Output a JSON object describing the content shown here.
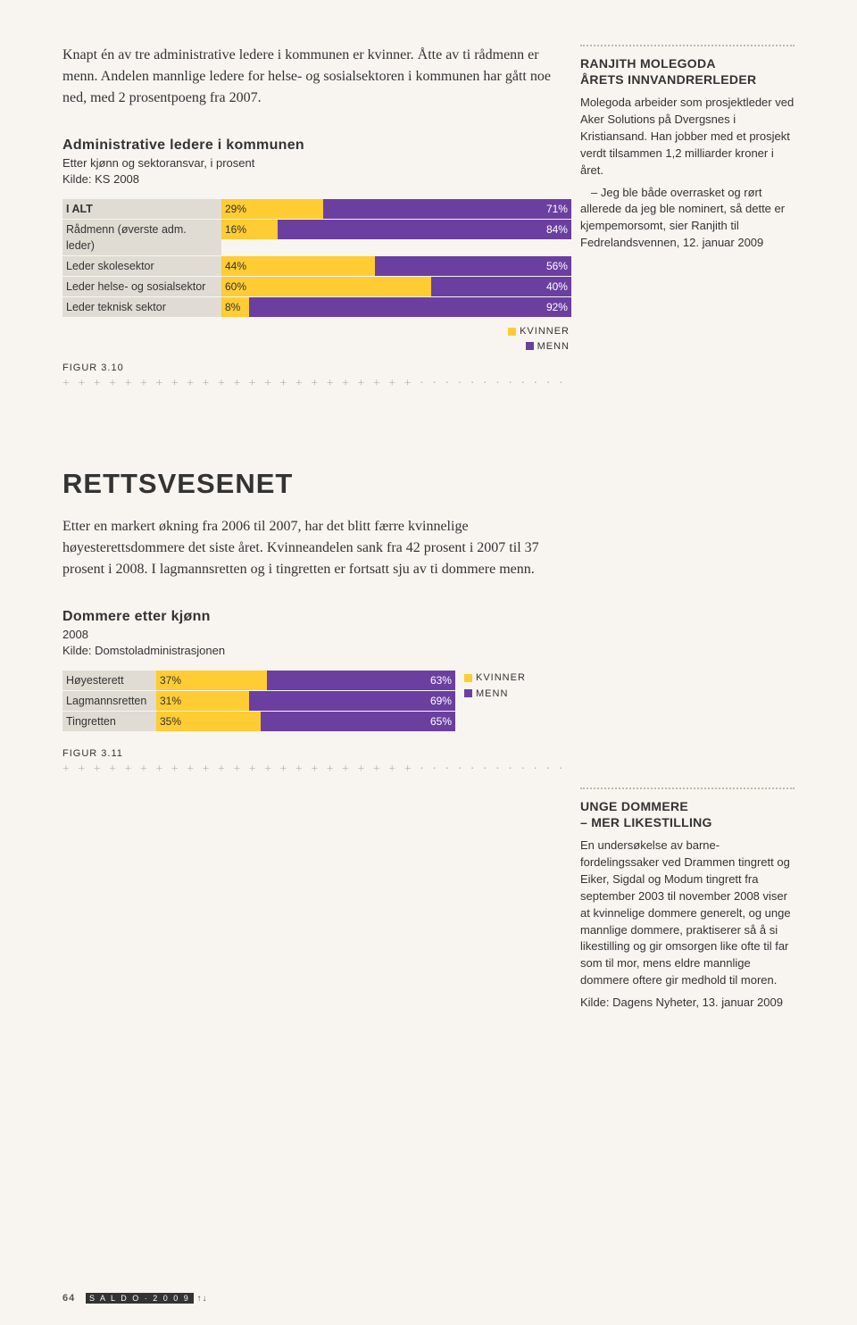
{
  "intro1": "Knapt én av tre administrative ledere i kommunen er kvinner. Åtte av ti rådmenn er menn. Andelen mannlige ledere for helse- og sosialsektoren i kommunen har gått noe ned, med 2 prosentpoeng fra 2007.",
  "chart1": {
    "title": "Administrative ledere i kommunen",
    "sub1": "Etter kjønn og sektoransvar, i prosent",
    "sub2": "Kilde: KS 2008",
    "k_color": "#ffcc33",
    "m_color": "#6b3fa0",
    "rows": [
      {
        "label": "I ALT",
        "bold": true,
        "k": 29,
        "m": 71
      },
      {
        "label": "Rådmenn (øverste adm. leder)",
        "k": 16,
        "m": 84
      },
      {
        "label": "Leder skolesektor",
        "k": 44,
        "m": 56
      },
      {
        "label": "Leder helse- og sosialsektor",
        "k": 60,
        "m": 40
      },
      {
        "label": "Leder teknisk sektor",
        "k": 8,
        "m": 92
      }
    ],
    "legend_k": "KVINNER",
    "legend_m": "MENN",
    "figref": "FIGUR 3.10"
  },
  "sidebar1": {
    "title_l1": "RANJITH MOLEGODA",
    "title_l2": "ÅRETS INNVANDRERLEDER",
    "p1": "Molegoda arbeider som prosjektleder ved Aker Solutions på Dvergsnes i Kristiansand. Han jobber med et prosjekt verdt tilsammen 1,2 milliarder kroner i året.",
    "p2": "– Jeg ble både overrasket og rørt allerede da jeg ble nominert, så dette er kjempemorsomt, sier Ranjith til Fedrelandsvennen, 12. januar 2009"
  },
  "heading2": "RETTSVESENET",
  "intro2": "Etter en markert økning fra 2006 til 2007, har det blitt færre kvinnelige høyesterettsdommere det siste året. Kvinneandelen sank fra 42 prosent i 2007 til 37 prosent i 2008. I lagmannsretten og i tingretten er fortsatt sju av ti dommere menn.",
  "chart2": {
    "title": "Dommere etter kjønn",
    "sub1": "2008",
    "sub2": "Kilde: Domstoladministrasjonen",
    "rows": [
      {
        "label": "Høyesterett",
        "k": 37,
        "m": 63
      },
      {
        "label": "Lagmannsretten",
        "k": 31,
        "m": 69
      },
      {
        "label": "Tingretten",
        "k": 35,
        "m": 65
      }
    ],
    "legend_k": "KVINNER",
    "legend_m": "MENN",
    "figref": "FIGUR 3.11"
  },
  "sidebar2": {
    "title_l1": "UNGE DOMMERE",
    "title_l2": "– MER LIKESTILLING",
    "p1": "En undersøkelse av barne-fordelingssaker ved Drammen tingrett og Eiker, Sigdal og Modum tingrett fra september 2003 til november 2008 viser at kvinnelige dommere generelt, og unge mannlige dommere, praktiserer så å si likestilling og gir omsorgen like ofte til far som til mor, mens eldre mannlige dommere oftere gir medhold til moren.",
    "p2": "Kilde: Dagens Nyheter, 13. januar 2009"
  },
  "footer": {
    "page": "64",
    "badge": "S A L D O · 2 0 0 9",
    "arrows": "↑↓"
  }
}
